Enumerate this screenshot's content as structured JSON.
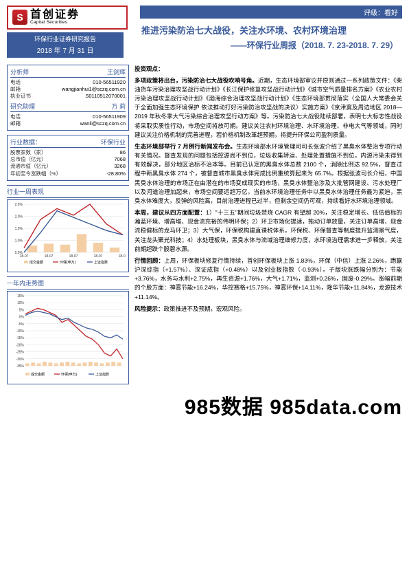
{
  "logo": {
    "cn": "首创证券",
    "en": "Capital Securities"
  },
  "header": {
    "report_type": "环保行业证券研究报告",
    "date": "2018 年 7 月 31 日",
    "rating_label": "评级：",
    "rating": "看好",
    "title": "推进污染防治七大战役，关注水环境、农村环境治理",
    "subtitle": "——环保行业周报（2018. 7. 23-2018. 7. 29）"
  },
  "analyst_panel": {
    "hdr_l": "分析师",
    "hdr_r": "王剑辉",
    "rows": [
      {
        "k": "电话",
        "v": "010-56511920"
      },
      {
        "k": "邮箱",
        "v": "wangjianhui1@sczq.com.cn"
      },
      {
        "k": "执业证书",
        "v": "S0110512070001"
      }
    ],
    "asst_hdr_l": "研究助理",
    "asst_hdr_r": "万 莉",
    "asst_rows": [
      {
        "k": "电话",
        "v": "010-56511909"
      },
      {
        "k": "邮箱",
        "v": "wanli@sczq.com.cn"
      }
    ]
  },
  "industry_panel": {
    "hdr_l": "行业数据：",
    "hdr_r": "环保行业",
    "rows": [
      {
        "k": "股票家数（家）",
        "v": "86"
      },
      {
        "k": "总市值（亿元）",
        "v": "7068"
      },
      {
        "k": "流通市值（亿元）",
        "v": "3268"
      },
      {
        "k": "年初至今涨跌幅（%）",
        "v": "-28.80%"
      }
    ]
  },
  "sect_week": "行业一周表现",
  "sect_year": "一年内走势图",
  "chart_week": {
    "yticks": [
      "2.5%",
      "2.0%",
      "1.5%",
      "1.0%",
      "0.5%"
    ],
    "xticks": [
      "18-07",
      "18-07",
      "18-07",
      "18-07",
      "18-07"
    ],
    "legend": [
      "成交金额",
      "环保(申万)",
      "上证指数"
    ],
    "bar_color": "#f4cfa6",
    "line1_color": "#c0262c",
    "line2_color": "#3a5a9a",
    "bars": [
      14,
      18,
      16,
      38,
      20,
      10
    ],
    "line1": [
      0.5,
      1.8,
      2.3,
      2.0,
      2.5,
      1.6,
      1.1
    ],
    "line2": [
      0.3,
      1.2,
      2.2,
      1.9,
      1.6,
      1.3,
      1.1
    ]
  },
  "chart_year": {
    "yticks": [
      "15%",
      "10%",
      "5%",
      "0%",
      "-5%",
      "-10%",
      "-15%",
      "-20%",
      "-25%",
      "-30%",
      "-35%"
    ],
    "legend": [
      "成交金额",
      "环保(申万)",
      "上证指数"
    ],
    "bar_color": "#f4cfa6",
    "line1_color": "#c0262c",
    "line2_color": "#3a5a9a",
    "line1": [
      2,
      4,
      6,
      5,
      3,
      1,
      -4,
      -2,
      -6,
      -10,
      -14,
      -16,
      -20,
      -26,
      -28,
      -23,
      -30
    ],
    "line2": [
      1,
      3,
      4,
      3,
      2,
      0,
      -2,
      -1,
      -4,
      -6,
      -8,
      -9,
      -11,
      -14,
      -15,
      -13,
      -16
    ],
    "bars": [
      3,
      4,
      3,
      5,
      4,
      3,
      4,
      5,
      4,
      3,
      4,
      5,
      4,
      3,
      4,
      5,
      4
    ]
  },
  "body": {
    "p0": "投资观点：",
    "h1": "多项政策将出台，污染防治七大战役吹响号角。",
    "p1": "近期，生态环境部审议并原则通过一系列政策文件：《柴油货车污染治理攻坚战行动计划》《长江保护修复攻坚战行动计划》《城市空气质量排名方案》《农业农村污染治理攻坚战行动计划》《渤海综合治理攻坚战行动计划》《生态环境部贯彻落实〈全国人大常委会关于全面加强生态环境保护 依法推动打好污染防治攻坚战的决议〉实施方案》《京津冀及周边地区 2018—2019 年秋冬季大气污染综合治理攻坚行动方案》等。污染防治七大战役陆续部署，表明七大标志性战役将采取实质性行动，市场空间将放可期。建议关注农村环境治理、水环境治理、非电大气等领域，同时建议关注价格机制的完善进程，若价格机制改革超预期，将提升环保公司盈利质量。",
    "h2": "生态环境部举行 7 月例行新闻发布会。",
    "p2": "生态环境部水环境管理司司长张波介绍了黑臭水体整治专项行动有关情况。督查发现的问题包括控源尚不到位，垃圾收集转运、处理处置措施不到位，内源污染未得到有效解决，部分地区治标不治本等。目前已认定的黑臭水体总数 2100 个，消除比例达 92.5%，督查过程中新黑臭水体 274 个，被督查城市黑臭水体完成比例重统算起来为 65.7%。根据张波司长介绍，中国黑臭水体治理的市场正在由潜在的市场变成现实的市场，黑臭水体整治涉及大批管网建设、污水处理厂以及河道治理加起来，市场空间要远超万亿。当前水环境治理任务中以黑臭水体治理任务最为紧迫，黑臭水体难度大，反弹的风险高，目前治理进程已过半，但剩余空间仍可观，持续看好水环境治理领域。",
    "h3": "本周，建议从四方面配置：",
    "p3": "1）\"十三五\"期间垃圾焚烧 CAGR 有望超 20%，关注稳定增长、低估值标的瀚蓝环境、增高堆、现金流充裕的伟明环保；2）环卫市场化提速，拖动订单放量，关注订单高增、现金流稳健标的龙马环卫；3）大气保，环保税构建直课税体系，环保税、环保督查等制度提升监测景气度，关注龙头聚光科技；4）水处理板块，黑臭水体与流域治理维修力度，水环境治理需求进一步释放，关注前期超跌个股碧水源。",
    "h4": "行情回顾：",
    "p4": "上周，环保板块修复行情持续，首创环保板块上涨 1.83%，环保（中信）上涨 2.26%，跑赢沪深综指（+1.57%）、深证成指（+0.48%）以及创业板指数（-0.93%）。子版块涨跌幅分别为：节能+3.76%，水务与水利+2.75%，再生资源+1.76%，大气+1.71%，监测+0.26%，固废-0.29%。涨幅前期的个股方面：神雾节能+16.24%，华控赛格+15.75%，神雾环保+14.11%，隆华节能+11.84%，龙源技术+11.14%。",
    "h5": "风险提示：",
    "p5": "政策推进不及预期，宏观风险。"
  },
  "watermark": "985数据 985data.com"
}
